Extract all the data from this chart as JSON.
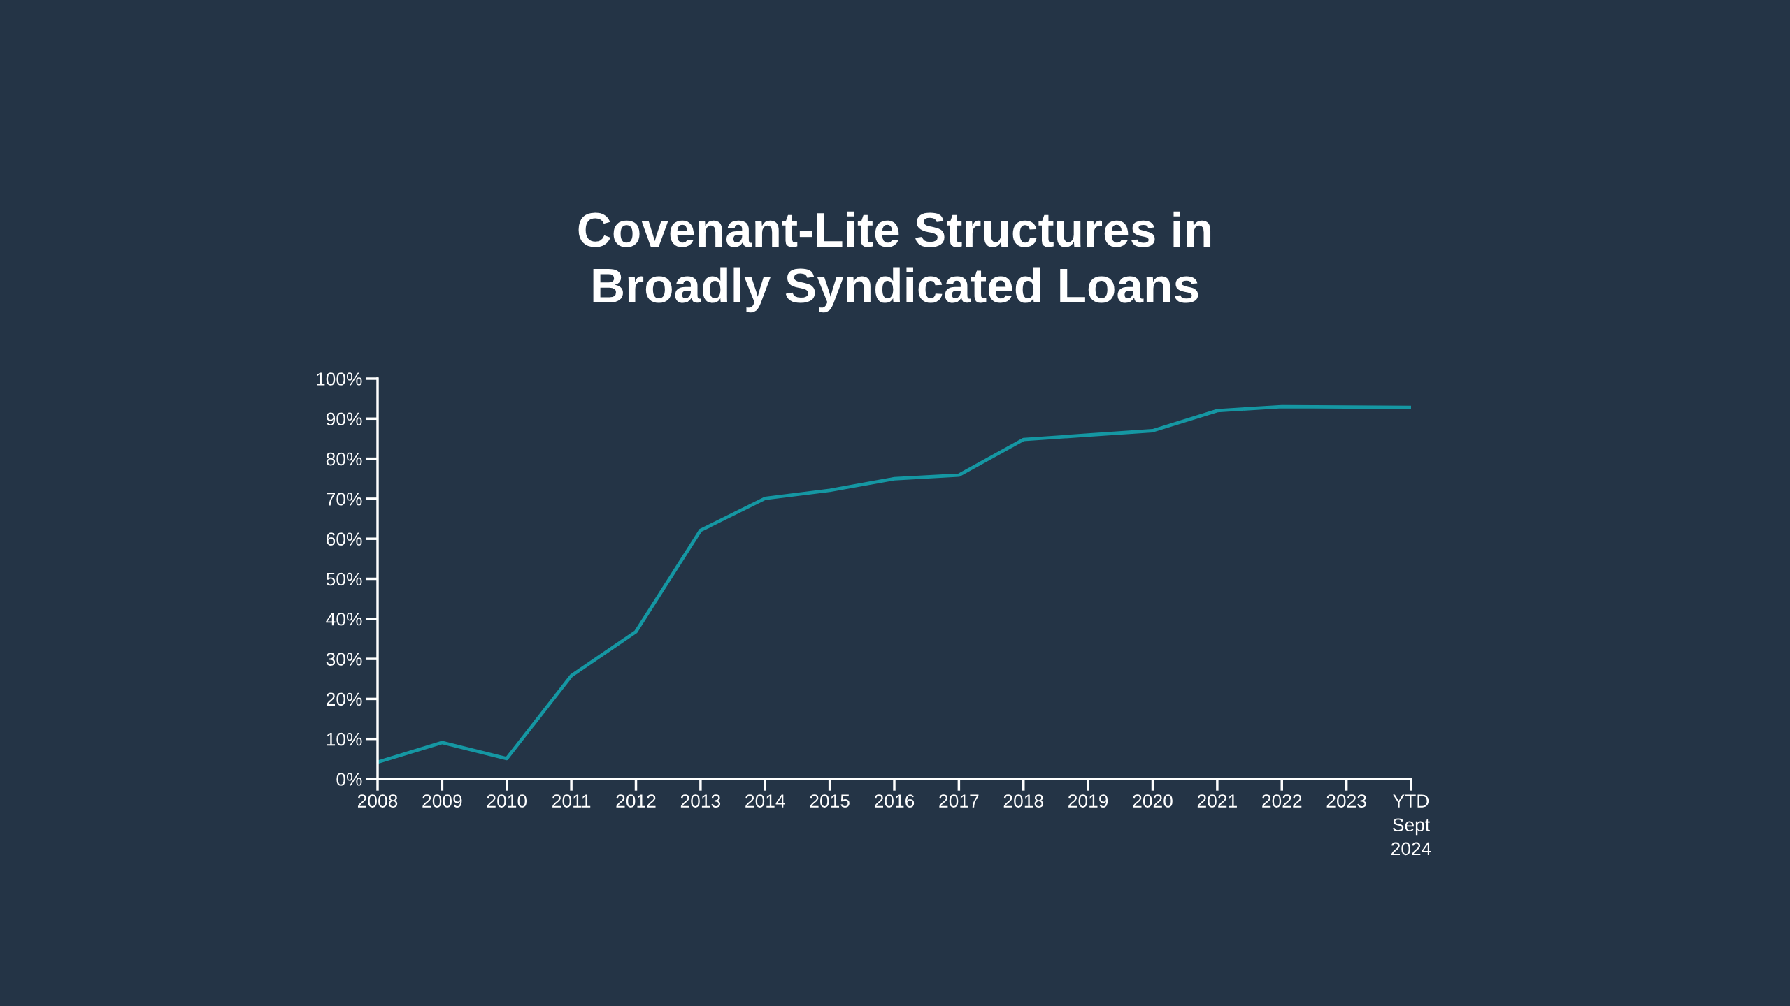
{
  "chart_data": {
    "type": "line",
    "title": "Covenant-Lite Structures in\nBroadly Syndicated Loans",
    "categories": [
      "2008",
      "2009",
      "2010",
      "2011",
      "2012",
      "2013",
      "2014",
      "2015",
      "2016",
      "2017",
      "2018",
      "2019",
      "2020",
      "2021",
      "2022",
      "2023",
      "YTD\nSept\n2024"
    ],
    "series": [
      {
        "color": "#1597a3",
        "values": [
          4.2,
          9.1,
          5.1,
          25.8,
          36.8,
          62.1,
          70.1,
          72.1,
          75.0,
          75.9,
          84.8,
          85.9,
          87.0,
          92.0,
          93.0,
          92.9,
          92.8
        ]
      }
    ],
    "ylim": [
      0,
      100
    ],
    "yticks": [
      {
        "value": 0,
        "label": "0%"
      },
      {
        "value": 10,
        "label": "10%"
      },
      {
        "value": 20,
        "label": "20%"
      },
      {
        "value": 30,
        "label": "30%"
      },
      {
        "value": 40,
        "label": "40%"
      },
      {
        "value": 50,
        "label": "50%"
      },
      {
        "value": 60,
        "label": "60%"
      },
      {
        "value": 70,
        "label": "70%"
      },
      {
        "value": 80,
        "label": "80%"
      },
      {
        "value": 90,
        "label": "90%"
      },
      {
        "value": 100,
        "label": "100%"
      }
    ],
    "grid": false,
    "legend": false,
    "marker": "none",
    "line_style": "solid"
  }
}
